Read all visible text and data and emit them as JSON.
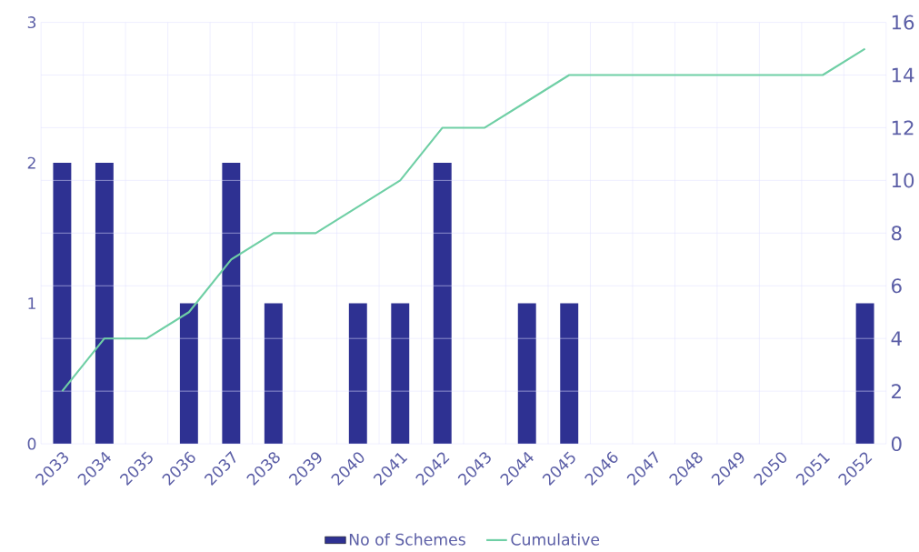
{
  "chart_data": {
    "type": "bar",
    "categories": [
      "2033",
      "2034",
      "2035",
      "2036",
      "2037",
      "2038",
      "2039",
      "2040",
      "2041",
      "2042",
      "2043",
      "2044",
      "2045",
      "2046",
      "2047",
      "2048",
      "2049",
      "2050",
      "2051",
      "2052"
    ],
    "series": [
      {
        "name": "No of Schemes",
        "color": "#2e3192",
        "values": [
          2,
          2,
          0,
          1,
          2,
          1,
          0,
          1,
          1,
          2,
          0,
          1,
          1,
          0,
          0,
          0,
          0,
          0,
          0,
          1
        ]
      },
      {
        "name": "Cumulative",
        "type": "line",
        "axis": "y2",
        "color": "#6fcfa5",
        "values": [
          2,
          4,
          4,
          5,
          7,
          8,
          8,
          9,
          10,
          12,
          12,
          13,
          14,
          14,
          14,
          14,
          14,
          14,
          14,
          15
        ]
      }
    ],
    "ylim": [
      0,
      3
    ],
    "yticks": [
      0,
      1,
      2,
      3
    ],
    "y2lim": [
      0,
      16
    ],
    "y2ticks": [
      0,
      2,
      4,
      6,
      8,
      10,
      12,
      14,
      16
    ],
    "grid": true,
    "legend": "bottom",
    "marker": "none",
    "line_style": "solid"
  }
}
